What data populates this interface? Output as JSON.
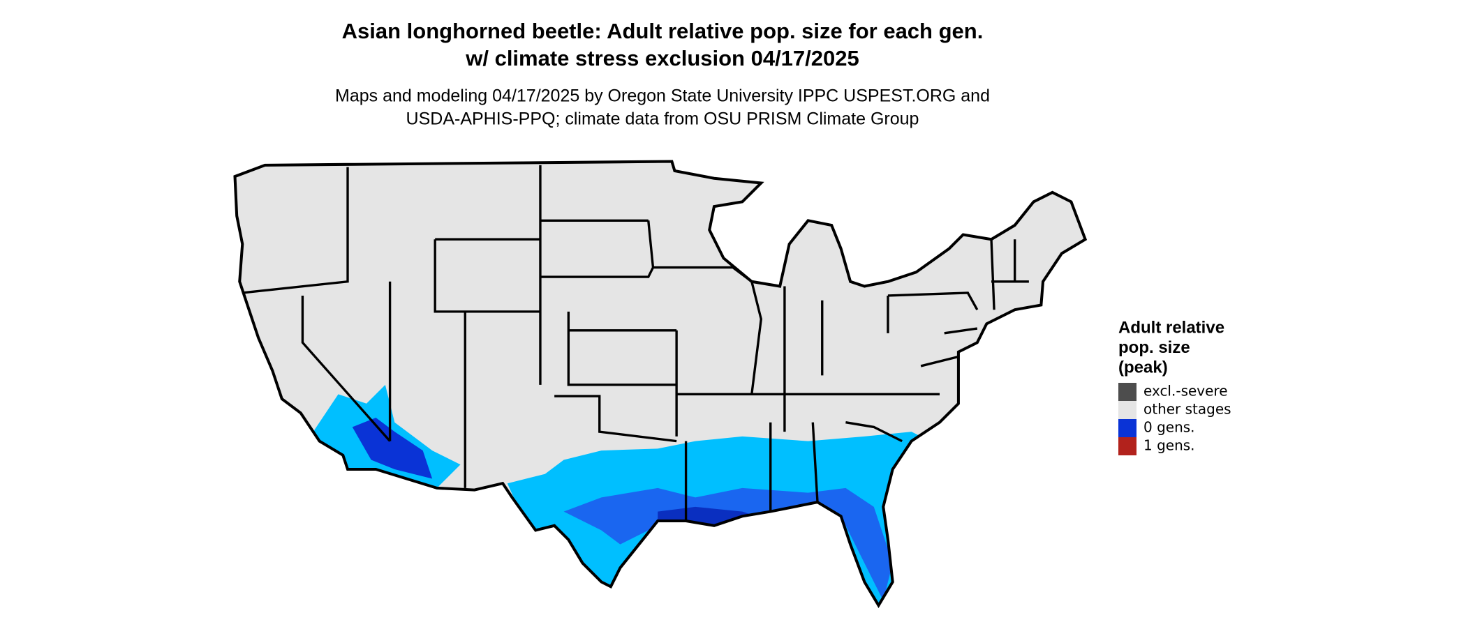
{
  "title": [
    "Asian longhorned beetle: Adult relative pop. size for each gen.",
    "w/ climate stress exclusion 04/17/2025"
  ],
  "subtitle": [
    "Maps and modeling 04/17/2025 by Oregon State University IPPC USPEST.ORG and",
    "USDA-APHIS-PPQ; climate data from OSU PRISM Climate Group"
  ],
  "legend": {
    "title": [
      "Adult relative",
      "pop. size",
      "(peak)"
    ],
    "items": [
      {
        "label": "excl.-severe",
        "color": "#4d4d4d"
      },
      {
        "label": "other stages",
        "color": "#e5e5e5"
      },
      {
        "label": "0 gens.",
        "color": "#0a33d6"
      },
      {
        "label": "1 gens.",
        "color": "#b2221c"
      }
    ]
  }
}
